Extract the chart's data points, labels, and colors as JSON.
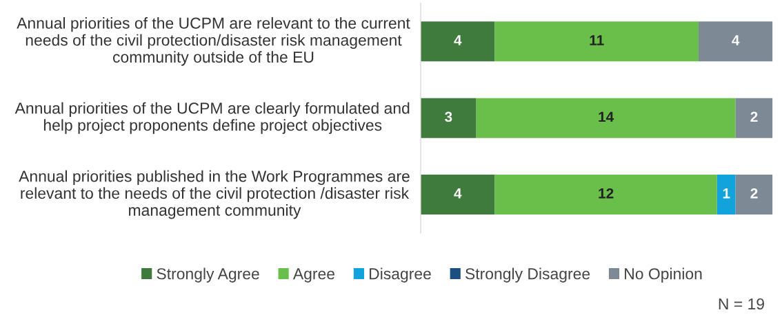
{
  "chart_data": {
    "type": "bar",
    "orientation": "horizontal",
    "stacked": true,
    "categories": [
      "Annual priorities of the UCPM are relevant to the current needs of the civil protection/disaster risk management community outside of the EU",
      "Annual priorities of the UCPM are clearly formulated and help project proponents define project objectives",
      "Annual priorities published in the Work Programmes are relevant to the needs of the civil protection /disaster risk management community"
    ],
    "series": [
      {
        "name": "Strongly Agree",
        "color": "#3e7b3c",
        "values": [
          4,
          3,
          4
        ],
        "value_labels": [
          "4",
          "3",
          "4"
        ]
      },
      {
        "name": "Agree",
        "color": "#6abf4b",
        "values": [
          11,
          14,
          12
        ],
        "value_labels": [
          "11",
          "14",
          "12"
        ]
      },
      {
        "name": "Disagree",
        "color": "#12a3dc",
        "values": [
          0,
          0,
          1
        ],
        "value_labels": [
          null,
          null,
          "1"
        ]
      },
      {
        "name": "Strongly Disagree",
        "color": "#1b4f80",
        "values": [
          0,
          0,
          0
        ],
        "value_labels": [
          null,
          null,
          null
        ]
      },
      {
        "name": "No Opinion",
        "color": "#7d8994",
        "values": [
          4,
          2,
          2
        ],
        "value_labels": [
          "4",
          "2",
          "2"
        ]
      }
    ],
    "xlim": [
      0,
      19
    ],
    "tick_labels": "y",
    "legend": "bottom",
    "grid": false,
    "annotations": [
      "N = 19"
    ]
  }
}
